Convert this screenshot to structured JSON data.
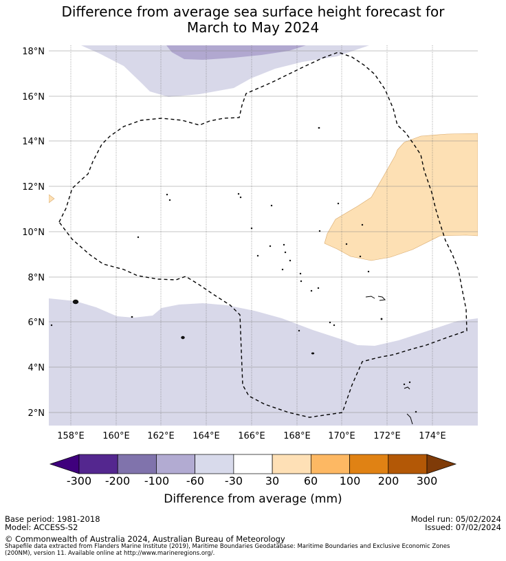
{
  "title": {
    "line1": "Difference from average sea surface height forecast for",
    "line2": "March to May 2024"
  },
  "map": {
    "lat_labels": [
      "2°N",
      "4°N",
      "6°N",
      "8°N",
      "10°N",
      "12°N",
      "14°N",
      "16°N",
      "18°N"
    ],
    "lon_labels": [
      "158°E",
      "160°E",
      "162°E",
      "164°E",
      "166°E",
      "168°E",
      "170°E",
      "172°E",
      "174°E"
    ],
    "boundary": "dashed",
    "colors": {
      "light_purple": "#d8d8e9",
      "mid_purple": "#b1a8d0",
      "light_orange": "#fde0b4",
      "land": "#000000"
    }
  },
  "colorbar": {
    "ticks": [
      "-300",
      "-200",
      "-100",
      "-60",
      "-30",
      "30",
      "60",
      "100",
      "200",
      "300"
    ],
    "colors": [
      "#3f007d",
      "#54278f",
      "#8073ac",
      "#b2abd2",
      "#d8daeb",
      "#ffffff",
      "#fee0b6",
      "#fdb863",
      "#e08214",
      "#b35806",
      "#7f3b08"
    ],
    "label": "Difference from average (mm)"
  },
  "footer": {
    "base_period": "Base period: 1981-2018",
    "model": "Model: ACCESS-S2",
    "model_run": "Model run: 05/02/2024",
    "issued": "Issued: 07/02/2024",
    "copyright": "© Commonwealth of Australia 2024, Australian Bureau of Meteorology",
    "source_line1": "Shapefile data extracted from Flanders Marine Institute (2019), Maritime Boundaries Geodatabase: Maritime Boundaries and Exclusive Economic Zones",
    "source_line2": "(200NM), version 11. Available online at http://www.marineregions.org/."
  }
}
